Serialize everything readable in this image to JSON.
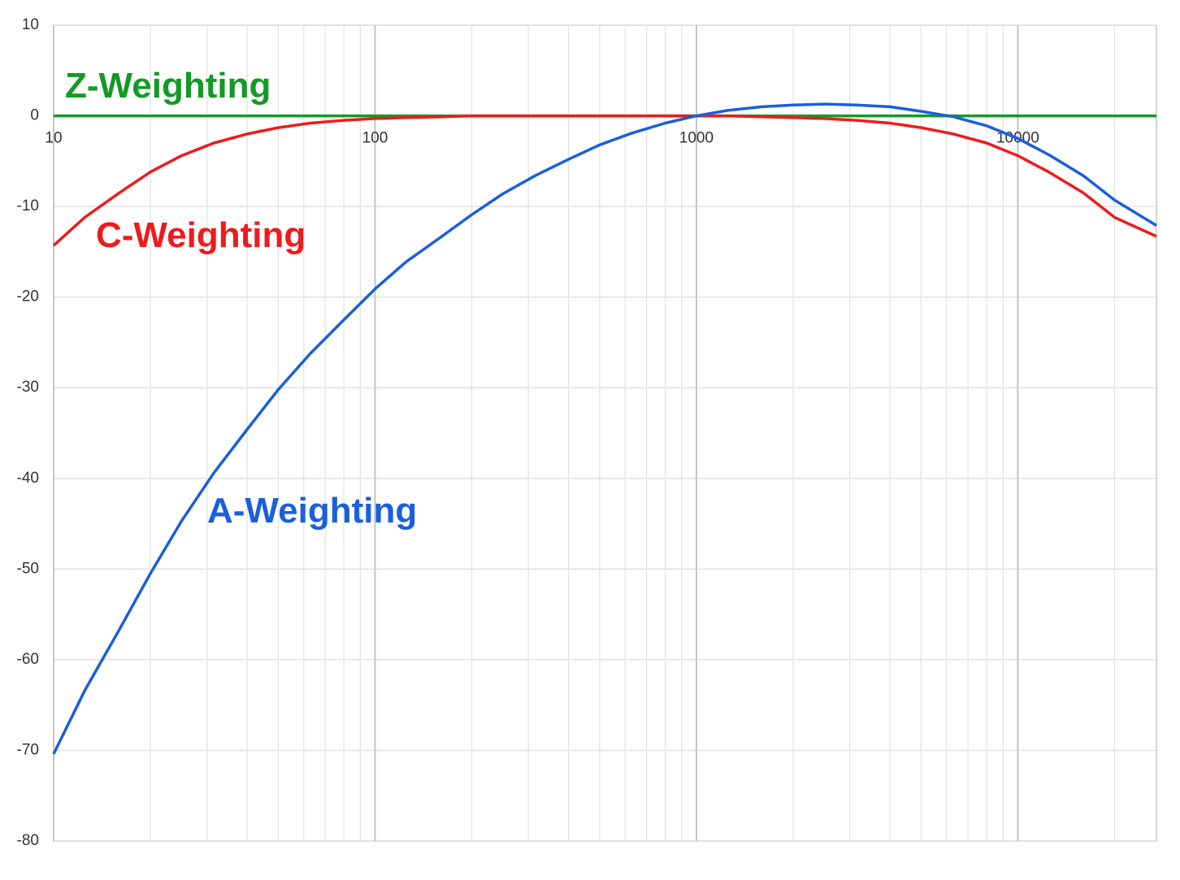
{
  "chart_data": {
    "type": "line",
    "x": [
      10,
      12.5,
      16,
      20,
      25,
      31.5,
      40,
      50,
      63,
      80,
      100,
      125,
      160,
      200,
      250,
      315,
      400,
      500,
      630,
      800,
      1000,
      1250,
      1600,
      2000,
      2500,
      3150,
      4000,
      5000,
      6300,
      8000,
      10000,
      12500,
      16000,
      20000,
      27000
    ],
    "series": [
      {
        "name": "Z-Weighting",
        "color": "#139a25",
        "values": [
          0,
          0,
          0,
          0,
          0,
          0,
          0,
          0,
          0,
          0,
          0,
          0,
          0,
          0,
          0,
          0,
          0,
          0,
          0,
          0,
          0,
          0,
          0,
          0,
          0,
          0,
          0,
          0,
          0,
          0,
          0,
          0,
          0,
          0,
          0
        ]
      },
      {
        "name": "C-Weighting",
        "color": "#ee1b1b",
        "values": [
          -14.3,
          -11.2,
          -8.5,
          -6.2,
          -4.4,
          -3.0,
          -2.0,
          -1.3,
          -0.8,
          -0.5,
          -0.3,
          -0.2,
          -0.1,
          0,
          0,
          0,
          0,
          0,
          0,
          0,
          0,
          0,
          -0.1,
          -0.2,
          -0.3,
          -0.5,
          -0.8,
          -1.3,
          -2.0,
          -3.0,
          -4.4,
          -6.2,
          -8.5,
          -11.2,
          -13.3
        ]
      },
      {
        "name": "A-Weighting",
        "color": "#1a5fdc",
        "values": [
          -70.4,
          -63.4,
          -56.7,
          -50.5,
          -44.7,
          -39.4,
          -34.6,
          -30.2,
          -26.2,
          -22.5,
          -19.1,
          -16.1,
          -13.4,
          -10.9,
          -8.6,
          -6.6,
          -4.8,
          -3.2,
          -1.9,
          -0.8,
          0,
          0.6,
          1.0,
          1.2,
          1.3,
          1.2,
          1.0,
          0.5,
          -0.1,
          -1.1,
          -2.5,
          -4.3,
          -6.6,
          -9.3,
          -12.1
        ]
      }
    ],
    "log_x": true,
    "xlim": [
      10,
      27000
    ],
    "xticks": [
      10,
      100,
      1000,
      10000
    ],
    "x_minor_ticks": [
      20,
      30,
      40,
      50,
      60,
      70,
      80,
      90,
      200,
      300,
      400,
      500,
      600,
      700,
      800,
      900,
      2000,
      3000,
      4000,
      5000,
      6000,
      7000,
      8000,
      9000,
      20000
    ],
    "ylim": [
      -80,
      10
    ],
    "yticks": [
      -80,
      -70,
      -60,
      -50,
      -40,
      -30,
      -20,
      -10,
      0,
      10
    ],
    "grid": true
  }
}
